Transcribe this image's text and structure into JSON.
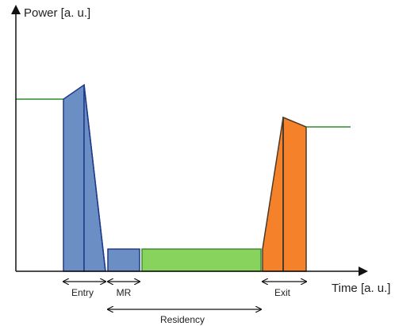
{
  "labels": {
    "y_axis": "Power [a. u.]",
    "x_axis": "Time [a. u.]",
    "entry": "Entry",
    "mr": "MR",
    "exit": "Exit",
    "residency": "Residency"
  },
  "colors": {
    "entry_fill": "#6b8fc4",
    "entry_stroke": "#1f3a8a",
    "mr_fill": "#6b8fc4",
    "residency_fill": "#88d35d",
    "residency_stroke": "#3f8f2f",
    "exit_fill": "#f5822a",
    "exit_stroke": "#4a3a2a",
    "power_line": "#2e8b2e",
    "axis": "#111111"
  }
}
